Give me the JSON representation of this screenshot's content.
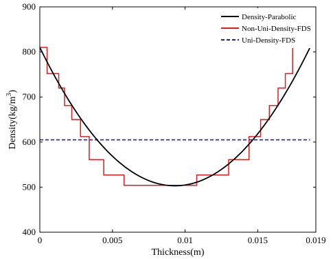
{
  "chart_data": {
    "type": "line",
    "title": "",
    "xlabel": "Thickness(m)",
    "ylabel_main": "Density(kg/m",
    "ylabel_sup": "3",
    "ylabel_close": ")",
    "xlim": [
      0,
      0.019
    ],
    "ylim": [
      400,
      900
    ],
    "x_ticks": [
      0,
      0.005,
      0.01,
      0.015,
      0.019
    ],
    "x_tick_labels": [
      "0",
      "0.005",
      "0.01",
      "0.015",
      "0.019"
    ],
    "y_ticks": [
      400,
      500,
      600,
      700,
      800,
      900
    ],
    "y_tick_labels": [
      "400",
      "500",
      "600",
      "700",
      "800",
      "900"
    ],
    "grid": false,
    "legend_position": "top-right",
    "series": [
      {
        "name": "Density-Parabolic",
        "kind": "parabola",
        "color": "#000000",
        "style": "solid",
        "vertex_x": 0.0093,
        "vertex_y": 503,
        "endpoints": [
          [
            0,
            810
          ],
          [
            0.0186,
            810
          ]
        ]
      },
      {
        "name": "Non-Uni-Density-FDS",
        "kind": "step",
        "color": "#e41a1c",
        "style": "solid",
        "edges": [
          0,
          0.0005,
          0.0013,
          0.0017,
          0.0022,
          0.0028,
          0.0034,
          0.0044,
          0.0058,
          0.008,
          0.0108,
          0.013,
          0.0144,
          0.0152,
          0.0158,
          0.0164,
          0.0169,
          0.0174,
          0.018,
          0.0186
        ],
        "levels": [
          810,
          752,
          720,
          681,
          650,
          612,
          561,
          527,
          504,
          504,
          527,
          561,
          612,
          650,
          681,
          720,
          752,
          810,
          810
        ]
      },
      {
        "name": "Uni-Density-FDS",
        "kind": "hline",
        "color": "#1f1fa8",
        "style": "dashed",
        "x_range": [
          0,
          0.0186
        ],
        "y": 605
      }
    ]
  }
}
